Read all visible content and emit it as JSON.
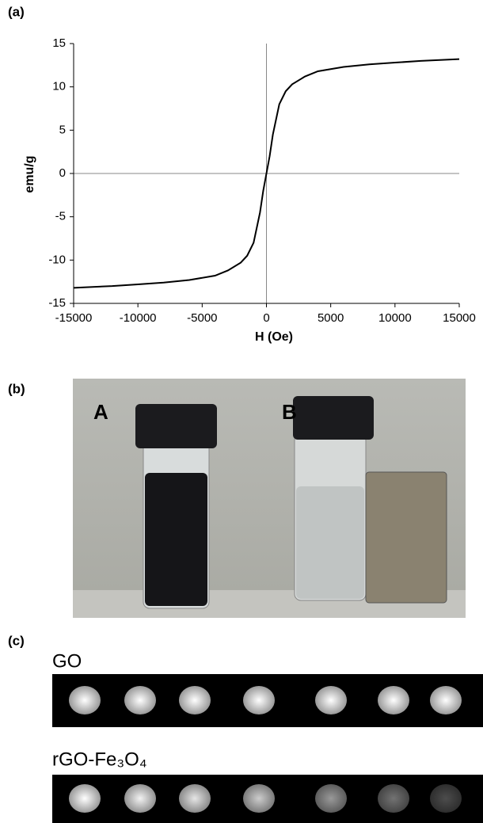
{
  "panel_labels": [
    "(a)",
    "(b)",
    "(c)"
  ],
  "chart_data": {
    "type": "line",
    "xlabel": "H (Oe)",
    "ylabel": "emu/g",
    "x": [
      -15000,
      -12000,
      -10000,
      -8000,
      -6000,
      -4000,
      -3000,
      -2000,
      -1500,
      -1000,
      -500,
      -250,
      0,
      250,
      500,
      1000,
      1500,
      2000,
      3000,
      4000,
      6000,
      8000,
      10000,
      12000,
      15000
    ],
    "values": [
      -13.2,
      -13.0,
      -12.8,
      -12.6,
      -12.3,
      -11.8,
      -11.2,
      -10.3,
      -9.5,
      -8.0,
      -4.5,
      -2.0,
      0,
      2.0,
      4.5,
      8.0,
      9.5,
      10.3,
      11.2,
      11.8,
      12.3,
      12.6,
      12.8,
      13.0,
      13.2
    ],
    "color": "#000000",
    "xlim": [
      -15000,
      15000
    ],
    "xticks": [
      -15000,
      -10000,
      -5000,
      0,
      5000,
      10000,
      15000
    ],
    "ylim": [
      -15,
      15
    ],
    "yticks": [
      -15,
      -10,
      -5,
      0,
      5,
      10,
      15
    ],
    "grid": false
  },
  "photo": {
    "labels": [
      "A",
      "B"
    ]
  },
  "mri": {
    "rows": [
      "GO",
      "rGO-Fe₃O₄"
    ]
  }
}
